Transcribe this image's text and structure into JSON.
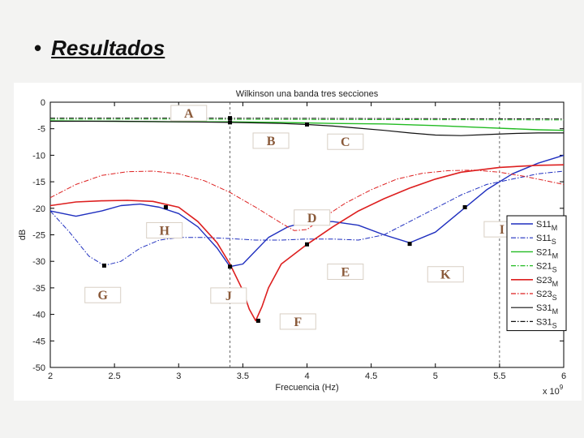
{
  "slide": {
    "bullet": "•",
    "title": "Resultados"
  },
  "chart_data": {
    "type": "line",
    "title": "Wilkinson una banda tres secciones",
    "xlabel": "Frecuencia (Hz)",
    "ylabel": "dB",
    "x_multiplier": "x 10",
    "x_multiplier_exp": "9",
    "xlim": [
      2,
      6
    ],
    "ylim": [
      -50,
      0
    ],
    "xticks": [
      2,
      2.5,
      3,
      3.5,
      4,
      4.5,
      5,
      5.5,
      6
    ],
    "xtick_labels": [
      "2",
      "2.5",
      "3",
      "3.5",
      "4",
      "4.5",
      "5",
      "5.5",
      "6"
    ],
    "yticks": [
      0,
      -5,
      -10,
      -15,
      -20,
      -25,
      -30,
      -35,
      -40,
      -45,
      -50
    ],
    "ytick_labels": [
      "0",
      "-5",
      "-10",
      "-15",
      "-20",
      "-25",
      "-30",
      "-35",
      "-40",
      "-45",
      "-50"
    ],
    "grid": "dashed vertical lines at 3.4 and 5.5",
    "legend_placement": "right",
    "series": [
      {
        "name": "S11",
        "sub": "M",
        "color": "#1f2fbf",
        "style": "solid",
        "width": 1.4,
        "x": [
          2,
          2.2,
          2.4,
          2.55,
          2.7,
          2.85,
          3.0,
          3.15,
          3.3,
          3.4,
          3.5,
          3.6,
          3.7,
          3.85,
          4.0,
          4.2,
          4.4,
          4.6,
          4.8,
          5.0,
          5.2,
          5.4,
          5.6,
          5.8,
          6.0
        ],
        "y": [
          -20.5,
          -21.5,
          -20.5,
          -19.5,
          -19.2,
          -19.8,
          -21.0,
          -23.5,
          -27.5,
          -31.0,
          -30.5,
          -28.0,
          -25.5,
          -23.5,
          -22.5,
          -22.5,
          -23.2,
          -25.0,
          -26.5,
          -24.5,
          -20.5,
          -16.5,
          -13.5,
          -11.5,
          -10.0
        ]
      },
      {
        "name": "S11",
        "sub": "S",
        "color": "#1f2fbf",
        "style": "dashdot",
        "width": 1.0,
        "x": [
          2,
          2.15,
          2.3,
          2.42,
          2.55,
          2.7,
          2.85,
          3.0,
          3.2,
          3.4,
          3.6,
          3.8,
          4.0,
          4.2,
          4.4,
          4.6,
          4.8,
          5.0,
          5.2,
          5.4,
          5.6,
          5.8,
          6.0
        ],
        "y": [
          -20.5,
          -24.5,
          -29.0,
          -30.8,
          -30.0,
          -27.5,
          -26.0,
          -25.5,
          -25.5,
          -25.7,
          -26.0,
          -26.0,
          -25.8,
          -25.8,
          -26.0,
          -25.0,
          -22.5,
          -20.0,
          -17.5,
          -15.5,
          -14.5,
          -13.5,
          -13.0
        ]
      },
      {
        "name": "S21",
        "sub": "M",
        "color": "#22bb22",
        "style": "solid",
        "width": 1.4,
        "x": [
          2,
          2.5,
          3.0,
          3.4,
          3.8,
          4.2,
          4.6,
          5.0,
          5.4,
          5.8,
          6.0
        ],
        "y": [
          -3.5,
          -3.6,
          -3.7,
          -3.7,
          -3.8,
          -4.0,
          -4.1,
          -4.4,
          -4.8,
          -5.2,
          -5.3
        ]
      },
      {
        "name": "S21",
        "sub": "S",
        "color": "#22bb22",
        "style": "dashdot",
        "width": 1.0,
        "x": [
          2,
          3,
          4,
          5,
          6
        ],
        "y": [
          -3.2,
          -3.2,
          -3.25,
          -3.3,
          -3.35
        ]
      },
      {
        "name": "S23",
        "sub": "M",
        "color": "#dd1f1f",
        "style": "solid",
        "width": 1.6,
        "x": [
          2,
          2.2,
          2.4,
          2.6,
          2.8,
          3.0,
          3.15,
          3.3,
          3.4,
          3.5,
          3.55,
          3.6,
          3.65,
          3.7,
          3.8,
          4.0,
          4.2,
          4.4,
          4.6,
          4.8,
          5.0,
          5.2,
          5.5,
          5.8,
          6.0
        ],
        "y": [
          -19.5,
          -18.8,
          -18.6,
          -18.5,
          -18.7,
          -19.8,
          -22.5,
          -26.5,
          -30.5,
          -35.5,
          -39.0,
          -41.2,
          -38.5,
          -35.0,
          -30.5,
          -26.8,
          -23.5,
          -20.5,
          -18.2,
          -16.2,
          -14.5,
          -13.2,
          -12.3,
          -11.9,
          -11.8
        ]
      },
      {
        "name": "S23",
        "sub": "S",
        "color": "#dd1f1f",
        "style": "dashdot",
        "width": 1.0,
        "x": [
          2,
          2.2,
          2.4,
          2.6,
          2.8,
          3.0,
          3.2,
          3.4,
          3.6,
          3.8,
          3.9,
          4.0,
          4.1,
          4.3,
          4.5,
          4.7,
          4.9,
          5.1,
          5.3,
          5.5,
          5.7,
          5.9,
          6.0
        ],
        "y": [
          -18.0,
          -15.5,
          -13.8,
          -13.1,
          -13.0,
          -13.5,
          -14.8,
          -17.0,
          -19.8,
          -22.8,
          -24.2,
          -24.0,
          -22.2,
          -19.0,
          -16.5,
          -14.5,
          -13.4,
          -12.9,
          -12.8,
          -13.2,
          -14.0,
          -15.0,
          -15.5
        ]
      },
      {
        "name": "S31",
        "sub": "M",
        "color": "#111111",
        "style": "solid",
        "width": 1.2,
        "x": [
          2,
          2.5,
          3.0,
          3.4,
          3.8,
          4.0,
          4.2,
          4.4,
          4.6,
          4.8,
          5.0,
          5.2,
          5.4,
          5.6,
          5.8,
          6.0
        ],
        "y": [
          -3.6,
          -3.6,
          -3.7,
          -3.8,
          -4.0,
          -4.2,
          -4.5,
          -4.9,
          -5.3,
          -5.8,
          -6.2,
          -6.3,
          -6.1,
          -5.9,
          -5.8,
          -5.8
        ]
      },
      {
        "name": "S31",
        "sub": "S",
        "color": "#111111",
        "style": "dashdot",
        "width": 1.0,
        "x": [
          2,
          3,
          4,
          5,
          6
        ],
        "y": [
          -3.0,
          -3.0,
          -3.05,
          -3.1,
          -3.15
        ]
      }
    ],
    "markers": [
      {
        "x": 3.4,
        "y": -3.0
      },
      {
        "x": 3.4,
        "y": -3.8
      },
      {
        "x": 4.0,
        "y": -4.2
      },
      {
        "x": 4.0,
        "y": -22.5
      },
      {
        "x": 4.0,
        "y": -26.8
      },
      {
        "x": 3.62,
        "y": -41.2
      },
      {
        "x": 2.42,
        "y": -30.8
      },
      {
        "x": 3.4,
        "y": -31.0
      },
      {
        "x": 2.9,
        "y": -19.8
      },
      {
        "x": 4.8,
        "y": -26.7
      },
      {
        "x": 5.23,
        "y": -19.8
      }
    ],
    "annotations": [
      {
        "label": "A",
        "x": 2.94,
        "y": -0.6
      },
      {
        "label": "B",
        "x": 3.58,
        "y": -5.8
      },
      {
        "label": "C",
        "x": 4.16,
        "y": -6.0
      },
      {
        "label": "D",
        "x": 3.9,
        "y": -20.3
      },
      {
        "label": "H",
        "x": 2.75,
        "y": -22.7
      },
      {
        "label": "I",
        "x": 5.38,
        "y": -22.5
      },
      {
        "label": "E",
        "x": 4.16,
        "y": -30.5
      },
      {
        "label": "K",
        "x": 4.94,
        "y": -31.0
      },
      {
        "label": "G",
        "x": 2.27,
        "y": -34.9
      },
      {
        "label": "J",
        "x": 3.25,
        "y": -35.0
      },
      {
        "label": "F",
        "x": 3.79,
        "y": -39.9
      }
    ]
  }
}
